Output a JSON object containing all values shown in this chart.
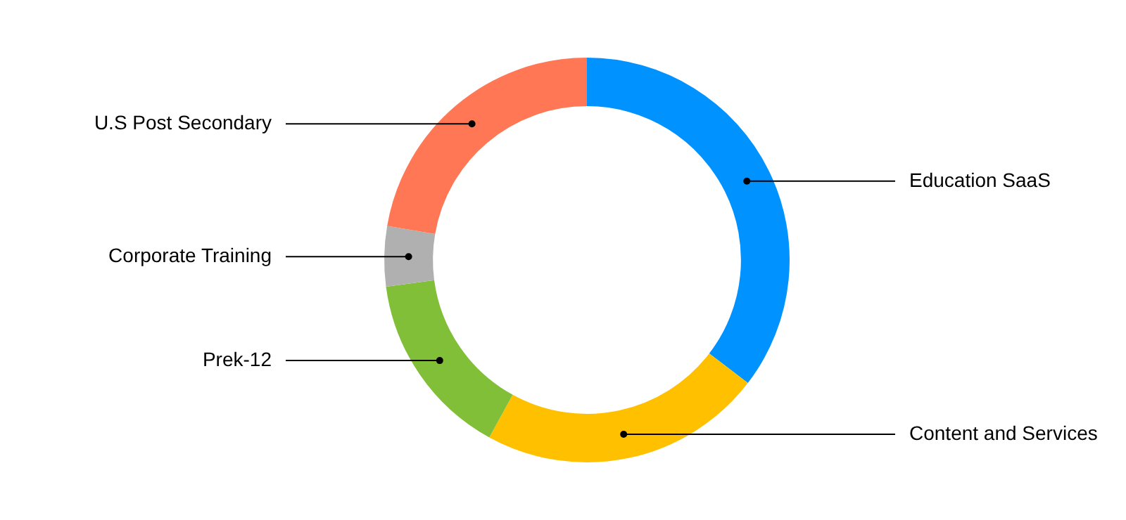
{
  "chart_data": {
    "type": "donut",
    "categories": [
      "Education SaaS",
      "Content and Services",
      "Prek-12",
      "Corporate Training",
      "U.S Post Secondary"
    ],
    "values": [
      35.4,
      22.6,
      14.9,
      4.8,
      22.3
    ],
    "colors": [
      "#0092ff",
      "#ffc000",
      "#82bf38",
      "#b0b0b0",
      "#ff7755"
    ],
    "legend": false
  }
}
